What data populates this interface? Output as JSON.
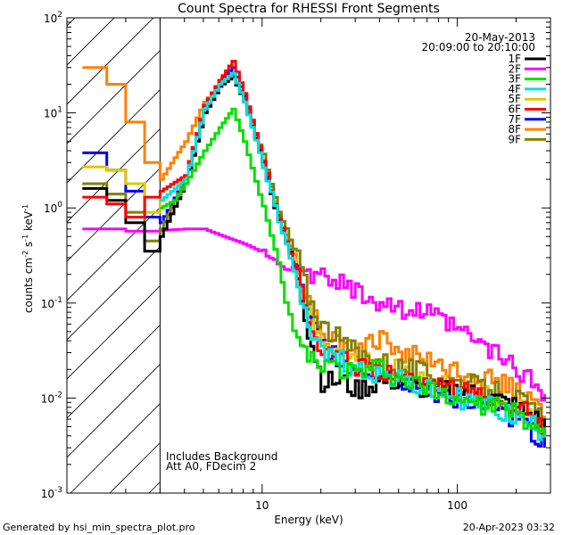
{
  "chart_data": {
    "type": "line",
    "title": "Count Spectra for RHESSI Front Segments",
    "xlabel": "Energy (keV)",
    "ylabel": "counts cm-2 s-1 keV-1",
    "xscale": "log",
    "yscale": "log",
    "xlim": [
      1,
      300
    ],
    "ylim": [
      0.001,
      100
    ],
    "x_tick_labels": [
      {
        "value": 10,
        "label": "10"
      },
      {
        "value": 100,
        "label": "100"
      }
    ],
    "y_tick_labels": [
      {
        "value": 0.001,
        "base": "10",
        "exp": "-3"
      },
      {
        "value": 0.01,
        "base": "10",
        "exp": "-2"
      },
      {
        "value": 0.1,
        "base": "10",
        "exp": "-1"
      },
      {
        "value": 1,
        "base": "10",
        "exp": "0"
      },
      {
        "value": 10,
        "base": "10",
        "exp": "1"
      },
      {
        "value": 100,
        "base": "10",
        "exp": "2"
      }
    ],
    "date": "20-May-2013",
    "time_range": "20:09:00 to 20:10:00",
    "notes": [
      "Includes Background",
      "Att A0, FDecim 2"
    ],
    "hatched_region_below_keV": 3,
    "legend": [
      {
        "name": "1F",
        "color": "#000000"
      },
      {
        "name": "2F",
        "color": "#ff00ff"
      },
      {
        "name": "3F",
        "color": "#00e000"
      },
      {
        "name": "4F",
        "color": "#00e0e0"
      },
      {
        "name": "5F",
        "color": "#e0c800"
      },
      {
        "name": "6F",
        "color": "#ff0000"
      },
      {
        "name": "7F",
        "color": "#0000ff"
      },
      {
        "name": "8F",
        "color": "#ff8000"
      },
      {
        "name": "9F",
        "color": "#808000"
      }
    ],
    "series": [
      {
        "name": "2F",
        "color": "#ff00ff",
        "x": [
          1.2,
          2,
          3,
          4,
          5,
          6,
          8,
          10,
          13,
          17,
          20,
          25,
          30,
          40,
          50,
          70,
          100,
          150,
          200,
          250,
          280
        ],
        "y": [
          0.6,
          0.57,
          0.58,
          0.6,
          0.6,
          0.52,
          0.42,
          0.34,
          0.24,
          0.2,
          0.18,
          0.16,
          0.14,
          0.1,
          0.09,
          0.075,
          0.05,
          0.03,
          0.02,
          0.013,
          0.011
        ]
      },
      {
        "name": "8F",
        "color": "#ff8000",
        "x": [
          1.2,
          1.6,
          2,
          2.5,
          3,
          4,
          5,
          6,
          7,
          8,
          10,
          12,
          15,
          17,
          20,
          25,
          30,
          40,
          50,
          70,
          100,
          150,
          200,
          250,
          280
        ],
        "y": [
          30,
          20,
          8,
          3,
          2,
          5,
          13,
          20,
          24,
          14,
          3,
          0.8,
          0.25,
          0.1,
          0.05,
          0.04,
          0.035,
          0.04,
          0.03,
          0.025,
          0.02,
          0.015,
          0.012,
          0.008,
          0.006
        ]
      },
      {
        "name": "7F",
        "color": "#0000ff",
        "x": [
          1.2,
          1.6,
          2,
          2.5,
          3,
          4,
          5,
          6,
          7,
          8,
          10,
          12,
          15,
          17,
          20,
          25,
          30,
          40,
          50,
          70,
          100,
          150,
          200,
          250,
          280
        ],
        "y": [
          3.8,
          2.5,
          1.5,
          0.8,
          0.7,
          2,
          12,
          22,
          30,
          15,
          3,
          0.8,
          0.2,
          0.07,
          0.035,
          0.025,
          0.02,
          0.018,
          0.015,
          0.012,
          0.01,
          0.008,
          0.006,
          0.004,
          0.003
        ]
      },
      {
        "name": "5F",
        "color": "#e0c800",
        "x": [
          1.2,
          1.6,
          2,
          2.5,
          3,
          4,
          5,
          6,
          7,
          8,
          10,
          12,
          15,
          17,
          20,
          25,
          30,
          40,
          50,
          70,
          100,
          150,
          200,
          250,
          280
        ],
        "y": [
          2.7,
          2.5,
          1.8,
          0.9,
          1.2,
          2,
          11,
          20,
          25,
          14,
          3,
          0.8,
          0.22,
          0.08,
          0.045,
          0.03,
          0.025,
          0.022,
          0.02,
          0.015,
          0.012,
          0.01,
          0.008,
          0.006,
          0.005
        ]
      },
      {
        "name": "9F",
        "color": "#808000",
        "x": [
          1.2,
          1.6,
          2,
          2.5,
          3,
          4,
          5,
          6,
          7,
          8,
          10,
          12,
          15,
          17,
          20,
          25,
          30,
          40,
          50,
          70,
          100,
          150,
          200,
          250,
          280
        ],
        "y": [
          1.8,
          1.4,
          0.9,
          0.45,
          0.6,
          2,
          11,
          20,
          25,
          14,
          3.5,
          0.9,
          0.3,
          0.12,
          0.06,
          0.04,
          0.03,
          0.025,
          0.022,
          0.018,
          0.015,
          0.012,
          0.01,
          0.007,
          0.005
        ]
      },
      {
        "name": "1F",
        "color": "#000000",
        "x": [
          1.2,
          1.6,
          2,
          2.5,
          3,
          4,
          5,
          6,
          7,
          8,
          10,
          12,
          15,
          17,
          20,
          25,
          30,
          40,
          50,
          70,
          100,
          150,
          200,
          250,
          280
        ],
        "y": [
          1.6,
          1.2,
          0.7,
          0.35,
          0.5,
          1.8,
          10,
          19,
          24,
          13,
          3,
          0.7,
          0.2,
          0.05,
          0.015,
          0.015,
          0.012,
          0.015,
          0.015,
          0.012,
          0.012,
          0.01,
          0.008,
          0.006,
          0.005
        ]
      },
      {
        "name": "6F",
        "color": "#ff0000",
        "x": [
          1.2,
          1.6,
          2,
          2.5,
          3,
          4,
          5,
          6,
          7,
          8,
          10,
          12,
          15,
          17,
          20,
          25,
          30,
          40,
          50,
          70,
          100,
          150,
          200,
          250,
          280
        ],
        "y": [
          1.3,
          1.1,
          0.8,
          1.3,
          1.5,
          2.2,
          12,
          22,
          35,
          16,
          3.2,
          0.8,
          0.2,
          0.07,
          0.03,
          0.025,
          0.02,
          0.02,
          0.018,
          0.015,
          0.012,
          0.01,
          0.008,
          0.006,
          0.005
        ]
      },
      {
        "name": "4F",
        "color": "#00e0e0",
        "x": [
          3,
          4,
          5,
          6,
          7,
          8,
          10,
          12,
          15,
          17,
          20,
          25,
          30,
          40,
          50,
          70,
          100,
          150,
          200,
          250,
          280
        ],
        "y": [
          1.2,
          2,
          11,
          20,
          26,
          13,
          2.8,
          0.7,
          0.17,
          0.06,
          0.03,
          0.025,
          0.02,
          0.018,
          0.015,
          0.012,
          0.01,
          0.008,
          0.006,
          0.005,
          0.004
        ]
      },
      {
        "name": "3F",
        "color": "#00e000",
        "x": [
          3,
          3.5,
          4,
          5,
          6,
          7,
          8,
          10,
          12,
          13,
          15,
          17,
          20,
          25,
          30,
          40,
          50,
          70,
          100,
          150,
          200,
          250,
          280
        ],
        "y": [
          1,
          1.2,
          1.8,
          4,
          7,
          11,
          5,
          1,
          0.25,
          0.1,
          0.04,
          0.025,
          0.022,
          0.02,
          0.018,
          0.02,
          0.015,
          0.012,
          0.01,
          0.008,
          0.007,
          0.005,
          0.004
        ]
      }
    ]
  },
  "footer": {
    "generated_by": "Generated by hsi_min_spectra_plot.pro",
    "timestamp": "20-Apr-2023 03:32"
  }
}
